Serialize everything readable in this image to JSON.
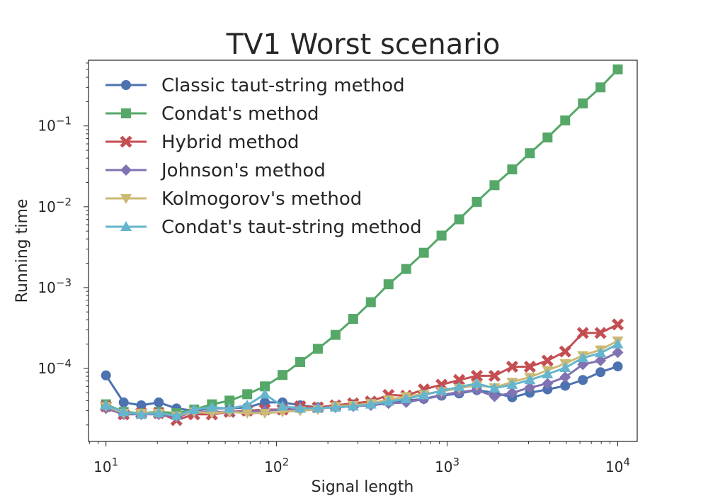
{
  "chart_data": {
    "type": "line",
    "title": "TV1 Worst scenario",
    "xlabel": "Signal length",
    "ylabel": "Running time",
    "xscale": "log",
    "yscale": "log",
    "xlim": [
      7.9,
      13000
    ],
    "ylim": [
      1.25e-05,
      0.65
    ],
    "x_ticks": [
      {
        "value": 10,
        "base": "10",
        "exp": "1"
      },
      {
        "value": 100,
        "base": "10",
        "exp": "2"
      },
      {
        "value": 1000,
        "base": "10",
        "exp": "3"
      },
      {
        "value": 10000,
        "base": "10",
        "exp": "4"
      }
    ],
    "y_ticks": [
      {
        "value": 0.0001,
        "base": "10",
        "exp": "−4"
      },
      {
        "value": 0.001,
        "base": "10",
        "exp": "−3"
      },
      {
        "value": 0.01,
        "base": "10",
        "exp": "−2"
      },
      {
        "value": 0.1,
        "base": "10",
        "exp": "−1"
      }
    ],
    "legend_position": "top-left",
    "x": [
      10,
      12.7,
      16.1,
      20.4,
      25.9,
      32.9,
      41.8,
      53,
      67.3,
      85.4,
      108.4,
      137.6,
      174.6,
      221.6,
      281.3,
      357,
      453.2,
      575.2,
      730.1,
      926.7,
      1176,
      1493,
      1895,
      2405,
      3053,
      3875,
      4918,
      6243,
      7924,
      10000
    ],
    "series": [
      {
        "name": "Classic taut-string method",
        "color": "#4c72b0",
        "marker": "circle",
        "values": [
          8.2e-05,
          3.8e-05,
          3.5e-05,
          3.8e-05,
          3.2e-05,
          3e-05,
          3.2e-05,
          3.2e-05,
          3.3e-05,
          3.8e-05,
          3.8e-05,
          3.5e-05,
          3.3e-05,
          3.4e-05,
          3.6e-05,
          3.7e-05,
          3.9e-05,
          4e-05,
          4.2e-05,
          4.6e-05,
          4.9e-05,
          5.4e-05,
          5e-05,
          4.4e-05,
          5e-05,
          5.5e-05,
          6.1e-05,
          7.2e-05,
          9e-05,
          0.000106
        ]
      },
      {
        "name": "Condat's method",
        "color": "#55a868",
        "marker": "square",
        "values": [
          3.6e-05,
          2.9e-05,
          2.8e-05,
          2.9e-05,
          2.8e-05,
          3.1e-05,
          3.6e-05,
          4e-05,
          4.8e-05,
          6e-05,
          8.3e-05,
          0.00012,
          0.000175,
          0.00026,
          0.00041,
          0.00066,
          0.0011,
          0.0017,
          0.0027,
          0.0044,
          0.007,
          0.0115,
          0.0185,
          0.029,
          0.046,
          0.072,
          0.117,
          0.19,
          0.3,
          0.5
        ]
      },
      {
        "name": "Hybrid method",
        "color": "#c44e52",
        "marker": "x",
        "values": [
          3.4e-05,
          2.7e-05,
          2.8e-05,
          2.8e-05,
          2.3e-05,
          2.7e-05,
          2.7e-05,
          2.9e-05,
          3e-05,
          3.1e-05,
          3.1e-05,
          3.4e-05,
          3.3e-05,
          3.5e-05,
          3.7e-05,
          3.9e-05,
          4.7e-05,
          4.6e-05,
          5.5e-05,
          6.3e-05,
          7.2e-05,
          8.1e-05,
          8.1e-05,
          0.000105,
          0.000105,
          0.000125,
          0.000162,
          0.000275,
          0.000275,
          0.00035
        ]
      },
      {
        "name": "Johnson's method",
        "color": "#8172b2",
        "marker": "diamond",
        "values": [
          3.2e-05,
          2.7e-05,
          2.7e-05,
          2.7e-05,
          2.5e-05,
          2.9e-05,
          2.9e-05,
          2.9e-05,
          2.9e-05,
          3e-05,
          3.1e-05,
          3.1e-05,
          3.3e-05,
          3.3e-05,
          3.4e-05,
          3.5e-05,
          3.7e-05,
          3.8e-05,
          4.2e-05,
          4.7e-05,
          5.1e-05,
          5.4e-05,
          4.5e-05,
          5e-05,
          5.8e-05,
          6.5e-05,
          7.8e-05,
          0.000112,
          0.000125,
          0.000158
        ]
      },
      {
        "name": "Kolmogorov's method",
        "color": "#ccb974",
        "marker": "triangle-down",
        "values": [
          3.4e-05,
          2.8e-05,
          2.8e-05,
          2.8e-05,
          2.6e-05,
          2.9e-05,
          2.8e-05,
          2.9e-05,
          2.8e-05,
          2.8e-05,
          2.9e-05,
          3e-05,
          3.1e-05,
          3.4e-05,
          3.5e-05,
          3.7e-05,
          4.1e-05,
          4.5e-05,
          4.8e-05,
          5.2e-05,
          5.7e-05,
          6.2e-05,
          5.8e-05,
          6.8e-05,
          7.8e-05,
          9.5e-05,
          0.000115,
          0.000145,
          0.00017,
          0.00022
        ]
      },
      {
        "name": "Condat's taut-string method",
        "color": "#64b5cd",
        "marker": "triangle-up",
        "values": [
          3.5e-05,
          2.9e-05,
          2.7e-05,
          2.8e-05,
          2.6e-05,
          3.1e-05,
          3.3e-05,
          3.2e-05,
          3.5e-05,
          4.8e-05,
          3.4e-05,
          3.2e-05,
          3.2e-05,
          3.3e-05,
          3.4e-05,
          3.6e-05,
          3.9e-05,
          4.2e-05,
          4.7e-05,
          5.3e-05,
          5.9e-05,
          6.5e-05,
          5.7e-05,
          6.3e-05,
          7.2e-05,
          8.5e-05,
          0.000102,
          0.000135,
          0.000155,
          0.0002
        ]
      }
    ]
  }
}
